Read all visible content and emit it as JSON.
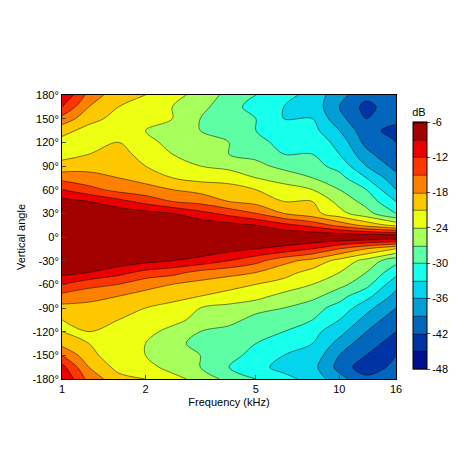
{
  "chart_data": {
    "type": "contour",
    "x_label": "Frequency (kHz)",
    "y_label": "Vertical angle",
    "colorbar_title": "dB",
    "log": "x",
    "x": [
      1,
      1.25,
      1.6,
      2,
      2.5,
      3.15,
      4,
      5,
      6.3,
      8,
      10,
      12.5,
      16
    ],
    "y": [
      -180,
      -165,
      -150,
      -135,
      -120,
      -105,
      -90,
      -75,
      -60,
      -45,
      -30,
      -15,
      0,
      15,
      30,
      45,
      60,
      75,
      90,
      105,
      120,
      135,
      150,
      165,
      180
    ],
    "z": [
      [
        -9,
        -16,
        -20,
        -21,
        -23,
        -25,
        -28,
        -30,
        -32,
        -34,
        -38,
        -41,
        -40
      ],
      [
        -11,
        -18,
        -22,
        -23,
        -25,
        -27,
        -30,
        -32,
        -34,
        -35,
        -40,
        -44,
        -41
      ],
      [
        -15,
        -20,
        -23,
        -24,
        -25,
        -27,
        -29,
        -31,
        -33,
        -34,
        -39,
        -42,
        -42
      ],
      [
        -19,
        -21,
        -22,
        -24,
        -26,
        -28,
        -29,
        -30,
        -32,
        -33,
        -37,
        -41,
        -43
      ],
      [
        -21,
        -21,
        -22,
        -23,
        -25,
        -27,
        -28,
        -29,
        -30,
        -32,
        -35,
        -39,
        -42
      ],
      [
        -21,
        -20,
        -21,
        -22,
        -23,
        -25,
        -26,
        -28,
        -29,
        -30,
        -33,
        -37,
        -41
      ],
      [
        -19,
        -19,
        -20,
        -21,
        -22,
        -24,
        -25,
        -26,
        -27,
        -29,
        -31,
        -35,
        -39
      ],
      [
        -16,
        -17,
        -18,
        -19,
        -20,
        -21,
        -22,
        -23,
        -25,
        -26,
        -29,
        -32,
        -37
      ],
      [
        -12,
        -14,
        -15,
        -17,
        -18,
        -19,
        -20,
        -21,
        -22,
        -24,
        -26,
        -29,
        -35
      ],
      [
        -8,
        -9,
        -11,
        -13,
        -14,
        -16,
        -17,
        -18,
        -20,
        -22,
        -24,
        -27,
        -32
      ],
      [
        -6,
        -7,
        -7,
        -8,
        -9,
        -10,
        -12,
        -14,
        -17,
        -19,
        -22,
        -25,
        -29
      ],
      [
        -6,
        -6,
        -6,
        -6,
        -6,
        -7,
        -8,
        -9,
        -10,
        -12,
        -15,
        -18,
        -21
      ],
      [
        -6,
        -6,
        -6,
        -6,
        -6,
        -6,
        -6,
        -6,
        -6,
        -6,
        -6,
        -6,
        -6
      ],
      [
        -6,
        -6,
        -6,
        -6,
        -7,
        -7,
        -8,
        -9,
        -11,
        -13,
        -16,
        -19,
        -22
      ],
      [
        -6,
        -7,
        -7,
        -8,
        -9,
        -11,
        -13,
        -15,
        -18,
        -20,
        -23,
        -26,
        -30
      ],
      [
        -8,
        -9,
        -11,
        -13,
        -15,
        -16,
        -18,
        -19,
        -21,
        -21,
        -25,
        -28,
        -33
      ],
      [
        -12,
        -14,
        -16,
        -17,
        -18,
        -19,
        -20,
        -21,
        -23,
        -24,
        -27,
        -30,
        -36
      ],
      [
        -16,
        -17,
        -18,
        -19,
        -21,
        -22,
        -22,
        -24,
        -25,
        -27,
        -29,
        -33,
        -38
      ],
      [
        -20,
        -19,
        -20,
        -21,
        -23,
        -24,
        -25,
        -26,
        -28,
        -29,
        -31,
        -36,
        -40
      ],
      [
        -22,
        -21,
        -20,
        -22,
        -24,
        -25,
        -27,
        -28,
        -30,
        -30,
        -33,
        -38,
        -42
      ],
      [
        -22,
        -22,
        -21,
        -23,
        -25,
        -26,
        -27,
        -29,
        -31,
        -31,
        -34,
        -40,
        -42
      ],
      [
        -20,
        -22,
        -22,
        -24,
        -25,
        -27,
        -28,
        -30,
        -32,
        -32,
        -36,
        -41,
        -43
      ],
      [
        -16,
        -20,
        -22,
        -23,
        -24,
        -27,
        -28,
        -30,
        -33,
        -33,
        -38,
        -42,
        -41
      ],
      [
        -12,
        -18,
        -21,
        -22,
        -24,
        -26,
        -29,
        -31,
        -33,
        -34,
        -39,
        -43,
        -40
      ],
      [
        -9,
        -16,
        -20,
        -21,
        -23,
        -25,
        -28,
        -30,
        -32,
        -34,
        -38,
        -41,
        -40
      ]
    ],
    "xlim": [
      1,
      16
    ],
    "xticks": [
      1,
      2,
      5,
      10,
      16
    ],
    "ylim": [
      -180,
      180
    ],
    "yticks": [
      {
        "value": -180,
        "label": "-180°"
      },
      {
        "value": -150,
        "label": "-150°"
      },
      {
        "value": -120,
        "label": "-120°"
      },
      {
        "value": -90,
        "label": "-90°"
      },
      {
        "value": -60,
        "label": "-60°"
      },
      {
        "value": -30,
        "label": "-30°"
      },
      {
        "value": 0,
        "label": "0°"
      },
      {
        "value": 30,
        "label": "30°"
      },
      {
        "value": 60,
        "label": "60°"
      },
      {
        "value": 90,
        "label": "90°"
      },
      {
        "value": 120,
        "label": "120°"
      },
      {
        "value": 150,
        "label": "150°"
      },
      {
        "value": 180,
        "label": "180°"
      }
    ],
    "zlim": [
      -48,
      -6
    ],
    "zticks": [
      -6,
      -12,
      -18,
      -24,
      -30,
      -36,
      -42,
      -48
    ]
  }
}
